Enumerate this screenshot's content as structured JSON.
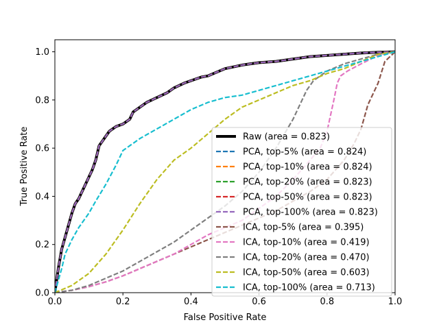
{
  "chart_data": {
    "type": "line",
    "title": "",
    "xlabel": "False Positive Rate",
    "ylabel": "True Positive Rate",
    "xlim": [
      0,
      1
    ],
    "ylim": [
      0,
      1.05
    ],
    "xticks": [
      0,
      0.2,
      0.4,
      0.6,
      0.8,
      1
    ],
    "yticks": [
      0,
      0.2,
      0.4,
      0.6,
      0.8,
      1.0
    ],
    "xtick_labels": [
      "0.0",
      "0.2",
      "0.4",
      "0.6",
      "0.8",
      "1.0"
    ],
    "ytick_labels": [
      "0.0",
      "0.2",
      "0.4",
      "0.6",
      "0.8",
      "1.0"
    ],
    "grid": false,
    "legend_position": "lower-right",
    "series": [
      {
        "name": "Raw (area = 0.823)",
        "color": "#000000",
        "style": "solid",
        "width": 4,
        "x": [
          0,
          0.005,
          0.01,
          0.015,
          0.02,
          0.03,
          0.04,
          0.05,
          0.06,
          0.07,
          0.08,
          0.09,
          0.1,
          0.11,
          0.12,
          0.13,
          0.14,
          0.15,
          0.16,
          0.18,
          0.2,
          0.22,
          0.23,
          0.25,
          0.27,
          0.3,
          0.33,
          0.35,
          0.38,
          0.4,
          0.43,
          0.45,
          0.5,
          0.55,
          0.6,
          0.65,
          0.7,
          0.75,
          0.8,
          0.85,
          0.9,
          0.95,
          1.0
        ],
        "y": [
          0,
          0.05,
          0.1,
          0.14,
          0.18,
          0.23,
          0.28,
          0.33,
          0.37,
          0.39,
          0.42,
          0.45,
          0.48,
          0.51,
          0.55,
          0.61,
          0.63,
          0.65,
          0.67,
          0.69,
          0.7,
          0.72,
          0.75,
          0.77,
          0.79,
          0.81,
          0.83,
          0.85,
          0.87,
          0.88,
          0.895,
          0.9,
          0.93,
          0.945,
          0.955,
          0.96,
          0.97,
          0.98,
          0.985,
          0.99,
          0.995,
          0.998,
          1.0
        ]
      },
      {
        "name": "PCA, top-5% (area = 0.824)",
        "color": "#1f77b4",
        "style": "dashed",
        "width": 2.2,
        "x": [
          0,
          0.005,
          0.01,
          0.015,
          0.02,
          0.03,
          0.04,
          0.05,
          0.06,
          0.07,
          0.08,
          0.09,
          0.1,
          0.11,
          0.12,
          0.13,
          0.14,
          0.15,
          0.16,
          0.18,
          0.2,
          0.22,
          0.23,
          0.25,
          0.27,
          0.3,
          0.33,
          0.35,
          0.38,
          0.4,
          0.43,
          0.45,
          0.5,
          0.55,
          0.6,
          0.65,
          0.7,
          0.75,
          0.8,
          0.85,
          0.9,
          0.95,
          1.0
        ],
        "y": [
          0,
          0.05,
          0.1,
          0.14,
          0.18,
          0.23,
          0.28,
          0.33,
          0.37,
          0.39,
          0.42,
          0.45,
          0.48,
          0.51,
          0.55,
          0.61,
          0.63,
          0.65,
          0.67,
          0.69,
          0.7,
          0.72,
          0.75,
          0.77,
          0.79,
          0.81,
          0.83,
          0.85,
          0.87,
          0.88,
          0.895,
          0.9,
          0.93,
          0.945,
          0.955,
          0.96,
          0.97,
          0.98,
          0.985,
          0.99,
          0.995,
          0.998,
          1.0
        ]
      },
      {
        "name": "PCA, top-10% (area = 0.824)",
        "color": "#ff7f0e",
        "style": "dashed",
        "width": 2.2,
        "x": [
          0,
          0.005,
          0.01,
          0.015,
          0.02,
          0.03,
          0.04,
          0.05,
          0.06,
          0.07,
          0.08,
          0.09,
          0.1,
          0.11,
          0.12,
          0.13,
          0.14,
          0.15,
          0.16,
          0.18,
          0.2,
          0.22,
          0.23,
          0.25,
          0.27,
          0.3,
          0.33,
          0.35,
          0.38,
          0.4,
          0.43,
          0.45,
          0.5,
          0.55,
          0.6,
          0.65,
          0.7,
          0.75,
          0.8,
          0.85,
          0.9,
          0.95,
          1.0
        ],
        "y": [
          0,
          0.05,
          0.1,
          0.14,
          0.18,
          0.23,
          0.28,
          0.33,
          0.37,
          0.39,
          0.42,
          0.45,
          0.48,
          0.51,
          0.55,
          0.61,
          0.63,
          0.65,
          0.67,
          0.69,
          0.7,
          0.72,
          0.75,
          0.77,
          0.79,
          0.81,
          0.83,
          0.85,
          0.87,
          0.88,
          0.895,
          0.9,
          0.93,
          0.945,
          0.955,
          0.96,
          0.97,
          0.98,
          0.985,
          0.99,
          0.995,
          0.998,
          1.0
        ]
      },
      {
        "name": "PCA, top-20% (area = 0.823)",
        "color": "#2ca02c",
        "style": "dashed",
        "width": 2.2,
        "x": [
          0,
          0.005,
          0.01,
          0.015,
          0.02,
          0.03,
          0.04,
          0.05,
          0.06,
          0.07,
          0.08,
          0.09,
          0.1,
          0.11,
          0.12,
          0.13,
          0.14,
          0.15,
          0.16,
          0.18,
          0.2,
          0.22,
          0.23,
          0.25,
          0.27,
          0.3,
          0.33,
          0.35,
          0.38,
          0.4,
          0.43,
          0.45,
          0.5,
          0.55,
          0.6,
          0.65,
          0.7,
          0.75,
          0.8,
          0.85,
          0.9,
          0.95,
          1.0
        ],
        "y": [
          0,
          0.05,
          0.1,
          0.14,
          0.18,
          0.23,
          0.28,
          0.33,
          0.37,
          0.39,
          0.42,
          0.45,
          0.48,
          0.51,
          0.55,
          0.61,
          0.63,
          0.65,
          0.67,
          0.69,
          0.7,
          0.72,
          0.75,
          0.77,
          0.79,
          0.81,
          0.83,
          0.85,
          0.87,
          0.88,
          0.895,
          0.9,
          0.93,
          0.945,
          0.955,
          0.96,
          0.97,
          0.98,
          0.985,
          0.99,
          0.995,
          0.998,
          1.0
        ]
      },
      {
        "name": "PCA, top-50% (area = 0.823)",
        "color": "#d62728",
        "style": "dashed",
        "width": 2.2,
        "x": [
          0,
          0.005,
          0.01,
          0.015,
          0.02,
          0.03,
          0.04,
          0.05,
          0.06,
          0.07,
          0.08,
          0.09,
          0.1,
          0.11,
          0.12,
          0.13,
          0.14,
          0.15,
          0.16,
          0.18,
          0.2,
          0.22,
          0.23,
          0.25,
          0.27,
          0.3,
          0.33,
          0.35,
          0.38,
          0.4,
          0.43,
          0.45,
          0.5,
          0.55,
          0.6,
          0.65,
          0.7,
          0.75,
          0.8,
          0.85,
          0.9,
          0.95,
          1.0
        ],
        "y": [
          0,
          0.05,
          0.1,
          0.14,
          0.18,
          0.23,
          0.28,
          0.33,
          0.37,
          0.39,
          0.42,
          0.45,
          0.48,
          0.51,
          0.55,
          0.61,
          0.63,
          0.65,
          0.67,
          0.69,
          0.7,
          0.72,
          0.75,
          0.77,
          0.79,
          0.81,
          0.83,
          0.85,
          0.87,
          0.88,
          0.895,
          0.9,
          0.93,
          0.945,
          0.955,
          0.96,
          0.97,
          0.98,
          0.985,
          0.99,
          0.995,
          0.998,
          1.0
        ]
      },
      {
        "name": "PCA, top-100% (area = 0.823)",
        "color": "#9467bd",
        "style": "dashed",
        "width": 2.2,
        "x": [
          0,
          0.005,
          0.01,
          0.015,
          0.02,
          0.03,
          0.04,
          0.05,
          0.06,
          0.07,
          0.08,
          0.09,
          0.1,
          0.11,
          0.12,
          0.13,
          0.14,
          0.15,
          0.16,
          0.18,
          0.2,
          0.22,
          0.23,
          0.25,
          0.27,
          0.3,
          0.33,
          0.35,
          0.38,
          0.4,
          0.43,
          0.45,
          0.5,
          0.55,
          0.6,
          0.65,
          0.7,
          0.75,
          0.8,
          0.85,
          0.9,
          0.95,
          1.0
        ],
        "y": [
          0,
          0.05,
          0.1,
          0.14,
          0.18,
          0.23,
          0.28,
          0.33,
          0.37,
          0.39,
          0.42,
          0.45,
          0.48,
          0.51,
          0.55,
          0.61,
          0.63,
          0.65,
          0.67,
          0.69,
          0.7,
          0.72,
          0.75,
          0.77,
          0.79,
          0.81,
          0.83,
          0.85,
          0.87,
          0.88,
          0.895,
          0.9,
          0.93,
          0.945,
          0.955,
          0.96,
          0.97,
          0.98,
          0.985,
          0.99,
          0.995,
          0.998,
          1.0
        ]
      },
      {
        "name": "ICA, top-5% (area = 0.395)",
        "color": "#8c564b",
        "style": "dashed",
        "width": 2.2,
        "x": [
          0,
          0.05,
          0.1,
          0.15,
          0.2,
          0.25,
          0.3,
          0.35,
          0.4,
          0.45,
          0.5,
          0.55,
          0.6,
          0.65,
          0.7,
          0.75,
          0.8,
          0.85,
          0.88,
          0.9,
          0.92,
          0.95,
          0.97,
          1.0
        ],
        "y": [
          0,
          0.01,
          0.025,
          0.045,
          0.07,
          0.1,
          0.13,
          0.16,
          0.19,
          0.22,
          0.25,
          0.28,
          0.31,
          0.34,
          0.38,
          0.42,
          0.47,
          0.55,
          0.62,
          0.68,
          0.78,
          0.87,
          0.96,
          1.0
        ]
      },
      {
        "name": "ICA, top-10% (area = 0.419)",
        "color": "#e377c2",
        "style": "dashed",
        "width": 2.2,
        "x": [
          0,
          0.05,
          0.1,
          0.15,
          0.2,
          0.25,
          0.3,
          0.35,
          0.4,
          0.45,
          0.5,
          0.55,
          0.6,
          0.65,
          0.7,
          0.75,
          0.78,
          0.8,
          0.82,
          0.83,
          0.84,
          0.86,
          0.9,
          0.95,
          1.0
        ],
        "y": [
          0,
          0.01,
          0.025,
          0.045,
          0.07,
          0.1,
          0.13,
          0.16,
          0.2,
          0.24,
          0.27,
          0.3,
          0.35,
          0.4,
          0.47,
          0.55,
          0.6,
          0.67,
          0.8,
          0.87,
          0.9,
          0.92,
          0.95,
          0.985,
          1.0
        ]
      },
      {
        "name": "ICA, top-20% (area = 0.470)",
        "color": "#7f7f7f",
        "style": "dashed",
        "width": 2.2,
        "x": [
          0,
          0.05,
          0.1,
          0.15,
          0.2,
          0.25,
          0.3,
          0.35,
          0.4,
          0.45,
          0.5,
          0.55,
          0.6,
          0.65,
          0.7,
          0.72,
          0.74,
          0.76,
          0.8,
          0.85,
          0.9,
          0.95,
          1.0
        ],
        "y": [
          0,
          0.01,
          0.03,
          0.06,
          0.09,
          0.13,
          0.17,
          0.21,
          0.26,
          0.31,
          0.36,
          0.42,
          0.5,
          0.6,
          0.72,
          0.78,
          0.84,
          0.88,
          0.92,
          0.95,
          0.97,
          0.99,
          1.0
        ]
      },
      {
        "name": "ICA, top-50% (area = 0.603)",
        "color": "#bcbd22",
        "style": "dashed",
        "width": 2.2,
        "x": [
          0,
          0.05,
          0.1,
          0.15,
          0.2,
          0.25,
          0.3,
          0.35,
          0.4,
          0.45,
          0.5,
          0.55,
          0.6,
          0.65,
          0.7,
          0.75,
          0.8,
          0.85,
          0.9,
          0.95,
          1.0
        ],
        "y": [
          0,
          0.03,
          0.08,
          0.16,
          0.26,
          0.37,
          0.47,
          0.55,
          0.6,
          0.66,
          0.72,
          0.77,
          0.8,
          0.83,
          0.86,
          0.88,
          0.91,
          0.93,
          0.96,
          0.99,
          1.0
        ]
      },
      {
        "name": "ICA, top-100% (area = 0.713)",
        "color": "#17becf",
        "style": "dashed",
        "width": 2.2,
        "x": [
          0,
          0.01,
          0.02,
          0.03,
          0.05,
          0.07,
          0.1,
          0.12,
          0.15,
          0.18,
          0.2,
          0.25,
          0.3,
          0.35,
          0.4,
          0.45,
          0.5,
          0.55,
          0.6,
          0.65,
          0.7,
          0.75,
          0.8,
          0.85,
          0.9,
          0.95,
          1.0
        ],
        "y": [
          0,
          0.05,
          0.1,
          0.16,
          0.22,
          0.27,
          0.33,
          0.38,
          0.45,
          0.53,
          0.59,
          0.64,
          0.68,
          0.72,
          0.76,
          0.79,
          0.81,
          0.82,
          0.84,
          0.86,
          0.88,
          0.9,
          0.92,
          0.94,
          0.96,
          0.98,
          1.0
        ]
      }
    ]
  }
}
